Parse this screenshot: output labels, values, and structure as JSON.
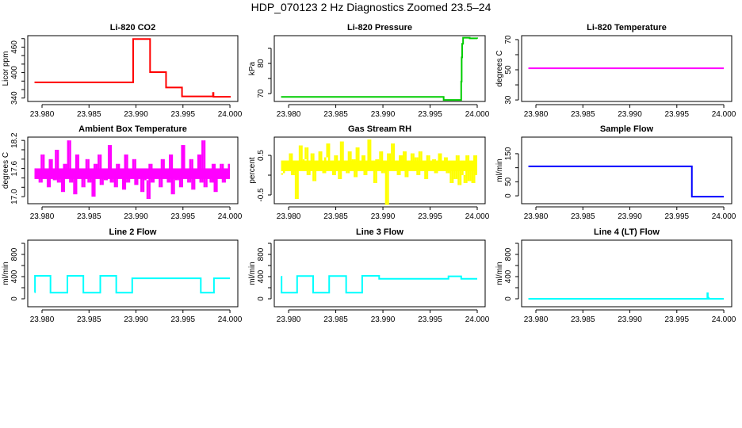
{
  "figure_title": "HDP_070123  2 Hz Diagnostics Zoomed 23.5–24",
  "chart_data": [
    {
      "type": "line",
      "title": "Li-820 CO2",
      "ylabel": "Licor ppm",
      "color": "#ff0000",
      "xlim": [
        23.97848,
        24.00084
      ],
      "ylim": [
        332,
        487
      ],
      "xticks": [
        23.98,
        23.985,
        23.99,
        23.995,
        24.0
      ],
      "xtick_labels": [
        "23.980",
        "23.985",
        "23.990",
        "23.995",
        "24.000"
      ],
      "yticks": [
        340,
        360,
        380,
        400,
        420,
        440,
        460,
        480
      ],
      "ytick_labels": [
        "340",
        "",
        "",
        "400",
        "",
        "",
        "460",
        ""
      ],
      "style": "step",
      "points": [
        [
          23.9792,
          377
        ],
        [
          23.9897,
          479
        ],
        [
          23.9915,
          401
        ],
        [
          23.9932,
          365
        ],
        [
          23.9949,
          344
        ],
        [
          23.9982,
          352
        ],
        [
          23.99825,
          343
        ],
        [
          24.0,
          341
        ]
      ]
    },
    {
      "type": "line",
      "title": "Li-820 Pressure",
      "ylabel": "kPa",
      "color": "#00cc00",
      "xlim": [
        23.97848,
        24.00084
      ],
      "ylim": [
        67.4,
        89.2
      ],
      "xticks": [
        23.98,
        23.985,
        23.99,
        23.995,
        24.0
      ],
      "xtick_labels": [
        "23.980",
        "23.985",
        "23.990",
        "23.995",
        "24.000"
      ],
      "yticks": [
        70,
        75,
        80,
        85
      ],
      "ytick_labels": [
        "70",
        "",
        "80",
        ""
      ],
      "style": "step",
      "points": [
        [
          23.9792,
          68.9
        ],
        [
          23.99644,
          67.9
        ],
        [
          23.9983,
          74
        ],
        [
          23.99835,
          82
        ],
        [
          23.9984,
          86.5
        ],
        [
          23.9985,
          88.5
        ],
        [
          23.9992,
          88.3
        ],
        [
          24.0,
          88.2
        ]
      ]
    },
    {
      "type": "line",
      "title": "Li-820 Temperature",
      "ylabel": "degrees C",
      "color": "#ff00ff",
      "xlim": [
        23.97848,
        24.00084
      ],
      "ylim": [
        29,
        72.6
      ],
      "xticks": [
        23.98,
        23.985,
        23.99,
        23.995,
        24.0
      ],
      "xtick_labels": [
        "23.980",
        "23.985",
        "23.990",
        "23.995",
        "24.000"
      ],
      "yticks": [
        30,
        40,
        50,
        60,
        70
      ],
      "ytick_labels": [
        "30",
        "",
        "50",
        "",
        "70"
      ],
      "style": "step",
      "points": [
        [
          23.9792,
          51
        ],
        [
          24.0,
          51
        ]
      ]
    },
    {
      "type": "line",
      "title": "Ambient Box Temperature",
      "ylabel": "degrees C",
      "color": "#ff00ff",
      "xlim": [
        23.97848,
        24.00084
      ],
      "ylim": [
        16.85,
        18.27
      ],
      "xticks": [
        23.98,
        23.985,
        23.99,
        23.995,
        24.0
      ],
      "xtick_labels": [
        "23.980",
        "23.985",
        "23.990",
        "23.995",
        "24.000"
      ],
      "yticks": [
        17.0,
        17.2,
        17.4,
        17.6,
        17.8,
        18.0,
        18.2
      ],
      "ytick_labels": [
        "17.0",
        "",
        "",
        "17.6",
        "",
        "",
        "18.2"
      ],
      "style": "noise",
      "x_range": [
        23.9792,
        24.0
      ],
      "values": [
        17.45,
        17.6,
        17.3,
        17.9,
        17.4,
        17.5,
        17.2,
        17.8,
        17.45,
        17.35,
        18.0,
        17.3,
        17.6,
        17.1,
        17.7,
        17.4,
        18.2,
        17.3,
        17.5,
        17.05,
        17.9,
        17.4,
        17.6,
        17.2,
        17.45,
        17.8,
        17.3,
        17.55,
        17.0,
        17.7,
        17.4,
        17.9,
        17.25,
        17.6,
        17.35,
        17.5,
        18.1,
        17.3,
        17.45,
        17.2,
        17.7,
        17.4,
        17.6,
        17.15,
        17.9,
        17.3,
        17.5,
        17.4,
        17.8,
        17.25,
        17.45,
        17.6,
        17.1,
        17.5,
        17.35,
        16.95,
        17.7,
        17.3,
        17.5,
        17.4,
        17.6,
        17.2,
        17.8,
        17.4,
        17.45,
        17.3,
        17.9,
        17.05,
        17.6,
        17.35,
        17.5,
        17.2,
        18.1,
        17.4,
        17.6,
        17.3,
        17.8,
        17.15,
        17.5,
        17.4,
        17.9,
        17.3,
        18.2,
        17.2,
        17.6,
        17.45,
        17.3,
        17.7,
        17.1,
        17.55,
        17.4,
        17.7,
        17.3,
        17.6,
        17.5,
        17.7
      ]
    },
    {
      "type": "line",
      "title": "Gas Stream RH",
      "ylabel": "percent",
      "color": "#ffff00",
      "xlim": [
        23.97848,
        24.00084
      ],
      "ylim": [
        -0.72,
        0.96
      ],
      "xticks": [
        23.98,
        23.985,
        23.99,
        23.995,
        24.0
      ],
      "xtick_labels": [
        "23.980",
        "23.985",
        "23.990",
        "23.995",
        "24.000"
      ],
      "yticks": [
        -0.5,
        0,
        0.5
      ],
      "ytick_labels": [
        "-0.5",
        "",
        "0.5"
      ],
      "style": "noise",
      "x_range": [
        23.9792,
        24.0
      ],
      "values": [
        0.05,
        0.2,
        0.3,
        0.1,
        0.55,
        0.0,
        0.3,
        -0.6,
        0.2,
        0.75,
        0.1,
        0.4,
        0.7,
        0.0,
        0.25,
        0.55,
        -0.15,
        0.3,
        0.1,
        0.6,
        0.2,
        0.05,
        0.45,
        0.8,
        0.1,
        0.3,
        0.0,
        0.5,
        0.2,
        -0.1,
        0.85,
        0.15,
        0.3,
        0.05,
        0.6,
        0.2,
        0.4,
        -0.05,
        0.7,
        0.1,
        0.25,
        0.5,
        0.0,
        0.35,
        0.9,
        0.1,
        0.2,
        -0.2,
        0.4,
        0.15,
        0.6,
        0.05,
        0.3,
        -0.75,
        0.55,
        0.2,
        0.8,
        0.1,
        0.35,
        0.0,
        0.5,
        0.2,
        0.6,
        -0.05,
        0.3,
        0.15,
        0.55,
        0.1,
        0.45,
        0.0,
        0.6,
        0.2,
        0.35,
        -0.1,
        0.5,
        0.25,
        0.1,
        0.4,
        0.05,
        0.3,
        0.55,
        0.1,
        0.2,
        0.45,
        0.05,
        0.1,
        -0.2,
        0.3,
        -0.1,
        0.5,
        -0.25,
        0.2,
        0.0,
        -0.2,
        0.5,
        -0.15,
        0.35,
        -0.2,
        0.5,
        0.0
      ]
    },
    {
      "type": "line",
      "title": "Sample Flow",
      "ylabel": "ml/min",
      "color": "#0000ff",
      "xlim": [
        23.97848,
        24.00084
      ],
      "ylim": [
        -28,
        209
      ],
      "xticks": [
        23.98,
        23.985,
        23.99,
        23.995,
        24.0
      ],
      "xtick_labels": [
        "23.980",
        "23.985",
        "23.990",
        "23.995",
        "24.000"
      ],
      "yticks": [
        0,
        50,
        100,
        150
      ],
      "ytick_labels": [
        "0",
        "50",
        "",
        "150"
      ],
      "style": "step",
      "points": [
        [
          23.9792,
          105
        ],
        [
          23.9966,
          -3
        ],
        [
          24.0,
          -3
        ]
      ]
    },
    {
      "type": "line",
      "title": "Line 2 Flow",
      "ylabel": "ml/min",
      "color": "#00ffff",
      "xlim": [
        23.97848,
        24.00084
      ],
      "ylim": [
        -143,
        1057
      ],
      "xticks": [
        23.98,
        23.985,
        23.99,
        23.995,
        24.0
      ],
      "xtick_labels": [
        "23.980",
        "23.985",
        "23.990",
        "23.995",
        "24.000"
      ],
      "yticks": [
        0,
        200,
        400,
        600,
        800,
        1000
      ],
      "ytick_labels": [
        "0",
        "",
        "400",
        "",
        "800",
        ""
      ],
      "style": "step",
      "points": [
        [
          23.9792,
          120
        ],
        [
          23.97925,
          415
        ],
        [
          23.9809,
          110
        ],
        [
          23.9827,
          415
        ],
        [
          23.9844,
          110
        ],
        [
          23.9862,
          415
        ],
        [
          23.9879,
          110
        ],
        [
          23.9896,
          370
        ],
        [
          23.9969,
          110
        ],
        [
          23.9983,
          370
        ],
        [
          24.0,
          370
        ]
      ]
    },
    {
      "type": "line",
      "title": "Line 3 Flow",
      "ylabel": "ml/min",
      "color": "#00ffff",
      "xlim": [
        23.97848,
        24.00084
      ],
      "ylim": [
        -143,
        1057
      ],
      "xticks": [
        23.98,
        23.985,
        23.99,
        23.995,
        24.0
      ],
      "xtick_labels": [
        "23.980",
        "23.985",
        "23.990",
        "23.995",
        "24.000"
      ],
      "yticks": [
        0,
        200,
        400,
        600,
        800,
        1000
      ],
      "ytick_labels": [
        "0",
        "",
        "400",
        "",
        "800",
        ""
      ],
      "style": "step",
      "points": [
        [
          23.9792,
          400
        ],
        [
          23.97925,
          110
        ],
        [
          23.9809,
          410
        ],
        [
          23.9826,
          110
        ],
        [
          23.9843,
          410
        ],
        [
          23.9861,
          110
        ],
        [
          23.9878,
          415
        ],
        [
          23.9896,
          360
        ],
        [
          23.99695,
          405
        ],
        [
          23.9983,
          360
        ],
        [
          24.0,
          360
        ]
      ]
    },
    {
      "type": "line",
      "title": "Line 4 (LT) Flow",
      "ylabel": "ml/min",
      "color": "#00ffff",
      "xlim": [
        23.97848,
        24.00084
      ],
      "ylim": [
        -143,
        1057
      ],
      "xticks": [
        23.98,
        23.985,
        23.99,
        23.995,
        24.0
      ],
      "xtick_labels": [
        "23.980",
        "23.985",
        "23.990",
        "23.995",
        "24.000"
      ],
      "yticks": [
        0,
        200,
        400,
        600,
        800,
        1000
      ],
      "ytick_labels": [
        "0",
        "",
        "400",
        "",
        "800",
        ""
      ],
      "style": "step",
      "points": [
        [
          23.9792,
          0
        ],
        [
          23.99825,
          100
        ],
        [
          23.9983,
          20
        ],
        [
          23.9984,
          0
        ],
        [
          24.0,
          0
        ]
      ]
    }
  ]
}
